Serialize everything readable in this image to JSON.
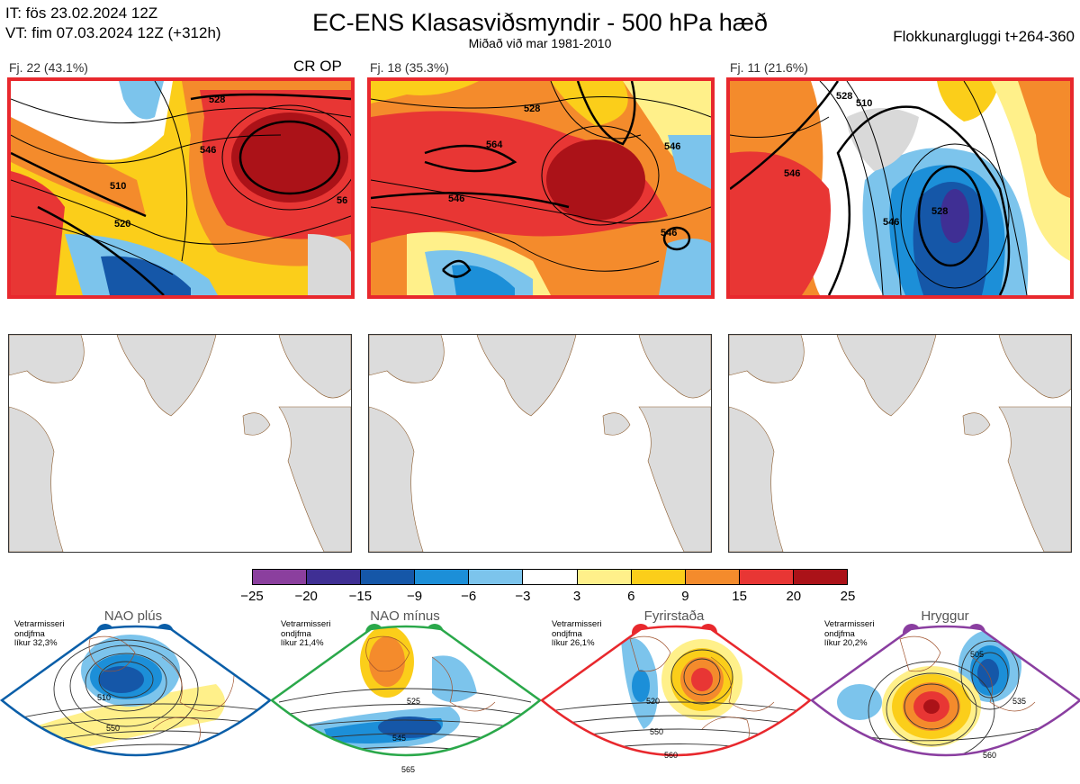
{
  "header": {
    "it_line": "IT: fös 23.02.2024 12Z",
    "vt_line": "VT: fim 07.03.2024 12Z  (+312h)",
    "title": "EC-ENS Klasasviðsmyndir - 500 hPa hæð",
    "subtitle": "Miðað við mar 1981-2010",
    "window": "Flokkunargluggi t+264-360"
  },
  "clusters": [
    {
      "label": "Fj. 22 (43.1%)",
      "badge": "CR OP",
      "contours": [
        "510",
        "520",
        "528",
        "546",
        "56"
      ]
    },
    {
      "label": "Fj. 18 (35.3%)",
      "badge": "",
      "contours": [
        "564",
        "546",
        "528",
        "546",
        "546"
      ]
    },
    {
      "label": "Fj. 11 (21.6%)",
      "badge": "",
      "contours": [
        "510",
        "528",
        "546",
        "546",
        "528"
      ]
    }
  ],
  "colorbar": {
    "ticks": [
      "−25",
      "−20",
      "−15",
      "−9",
      "−6",
      "−3",
      "3",
      "6",
      "9",
      "15",
      "20",
      "25"
    ],
    "colors": [
      "#8b3f9e",
      "#3f2f94",
      "#1557a8",
      "#1c8fd8",
      "#7cc4ec",
      "#ffffff",
      "#fff08a",
      "#fbce1a",
      "#f48b2c",
      "#e83634",
      "#ab1218"
    ]
  },
  "regimes": [
    {
      "name": "NAO plús",
      "climate": [
        "Vetrarmisseri",
        "ondjfma",
        "líkur 32,3%"
      ],
      "color": "#0a5ea8",
      "contours": [
        "510",
        "550"
      ]
    },
    {
      "name": "NAO mínus",
      "climate": [
        "Vetrarmisseri",
        "ondjfma",
        "líkur 21,4%"
      ],
      "color": "#2aa84a",
      "contours": [
        "525",
        "545",
        "565"
      ]
    },
    {
      "name": "Fyrirstaða",
      "climate": [
        "Vetrarmisseri",
        "ondjfma",
        "líkur 26,1%"
      ],
      "color": "#e8282d",
      "contours": [
        "520",
        "550",
        "560"
      ]
    },
    {
      "name": "Hryggur",
      "climate": [
        "Vetrarmisseri",
        "ondjfma",
        "líkur 20,2%"
      ],
      "color": "#8a3ea0",
      "contours": [
        "505",
        "535",
        "560"
      ]
    }
  ]
}
